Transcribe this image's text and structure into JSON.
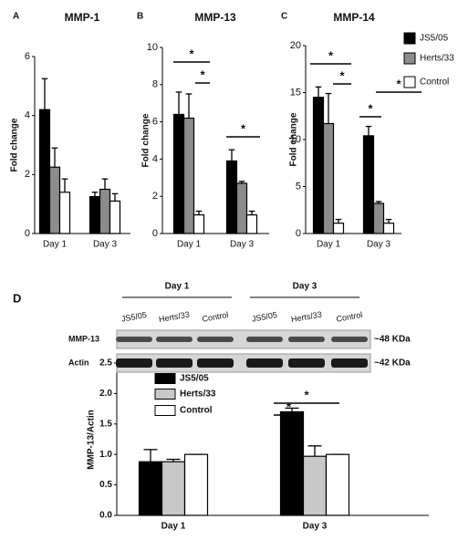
{
  "chart_data": [
    {
      "type": "bar",
      "panel": "A",
      "title": "MMP-1",
      "y_label": "Fold change",
      "categories": [
        "Day 1",
        "Day 3"
      ],
      "series": [
        {
          "color": "#000000",
          "values": [
            4.2,
            1.25
          ],
          "errors": [
            1.05,
            0.15
          ]
        },
        {
          "color": "#8c8c8c",
          "values": [
            2.25,
            1.5
          ],
          "errors": [
            0.65,
            0.35
          ]
        },
        {
          "color": "#ffffff",
          "values": [
            1.4,
            1.1
          ],
          "errors": [
            0.45,
            0.25
          ]
        }
      ],
      "ylim": [
        0,
        6
      ],
      "yticks": [
        0,
        2,
        4,
        6
      ],
      "annotations": []
    },
    {
      "type": "bar",
      "panel": "B",
      "title": "MMP-13",
      "y_label": "Fold change",
      "categories": [
        "Day 1",
        "Day 3"
      ],
      "series": [
        {
          "color": "#000000",
          "values": [
            6.4,
            3.9
          ],
          "errors": [
            1.2,
            0.6
          ]
        },
        {
          "color": "#8c8c8c",
          "values": [
            6.2,
            2.7
          ],
          "errors": [
            1.3,
            0.1
          ]
        },
        {
          "color": "#ffffff",
          "values": [
            1.0,
            1.0
          ],
          "errors": [
            0.2,
            0.2
          ]
        }
      ],
      "ylim": [
        0,
        10
      ],
      "yticks": [
        0,
        2,
        4,
        6,
        8,
        10
      ],
      "annotations": [
        "*",
        "*",
        "*"
      ]
    },
    {
      "type": "bar",
      "panel": "C",
      "title": "MMP-14",
      "y_label": "Fold change",
      "categories": [
        "Day 1",
        "Day 3"
      ],
      "series": [
        {
          "name": "JS5/05",
          "color": "#000000",
          "values": [
            14.5,
            10.4
          ],
          "errors": [
            1.1,
            1.0
          ]
        },
        {
          "name": "Herts/33",
          "color": "#8c8c8c",
          "values": [
            11.7,
            3.2
          ],
          "errors": [
            3.2,
            0.2
          ]
        },
        {
          "name": "Control",
          "color": "#ffffff",
          "values": [
            1.1,
            1.1
          ],
          "errors": [
            0.4,
            0.4
          ]
        }
      ],
      "ylim": [
        0,
        20
      ],
      "yticks": [
        0,
        5,
        10,
        15,
        20
      ],
      "legend": "right",
      "annotations": [
        "*",
        "*",
        "*",
        "*"
      ]
    },
    {
      "type": "bar",
      "y_label": "MMP-13/Actin",
      "categories": [
        "Day 1",
        "Day 3"
      ],
      "series": [
        {
          "name": "JS5/05",
          "color": "#000000",
          "values": [
            0.88,
            1.7
          ],
          "errors": [
            0.2,
            0.06
          ]
        },
        {
          "name": "Herts/33",
          "color": "#c8c8c8",
          "values": [
            0.88,
            0.97
          ],
          "errors": [
            0.04,
            0.17
          ]
        },
        {
          "name": "Control",
          "color": "#ffffff",
          "values": [
            1.0,
            1.0
          ],
          "errors": [
            0,
            0
          ]
        }
      ],
      "ylim": [
        0,
        2.5
      ],
      "yticks": [
        {
          "value": 0,
          "label": "0.0"
        },
        0.5,
        {
          "value": 1,
          "label": "1.0"
        },
        1.5,
        {
          "value": 2,
          "label": "2.0"
        },
        2.5
      ],
      "legend": "top",
      "annotations": [
        "*",
        "*"
      ]
    }
  ],
  "blot": {
    "panel": "D",
    "groups": [
      "Day 1",
      "Day 3"
    ],
    "lanes": [
      "JS5/05",
      "Herts/33",
      "Control",
      "JS5/05",
      "Herts/33",
      "Control"
    ],
    "rows": [
      {
        "label": "MMP-13",
        "size": "~48 KDa"
      },
      {
        "label": "Actin",
        "size": "~42 KDa"
      }
    ]
  }
}
